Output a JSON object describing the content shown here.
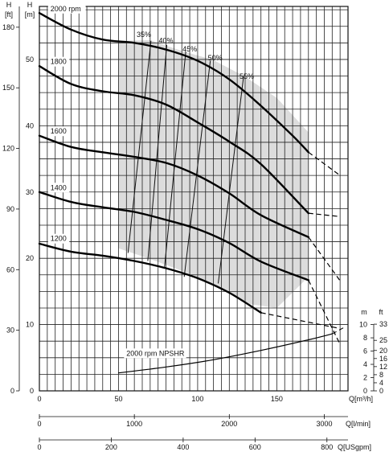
{
  "chart_data": {
    "type": "line",
    "axes": {
      "x_primary": {
        "unit": "Q[m³/h]",
        "ticks": [
          0,
          50,
          100,
          150
        ],
        "range": [
          0,
          195
        ],
        "grid_step": 5
      },
      "x_lmin": {
        "unit": "Q[l/min]",
        "ticks": [
          0,
          1000,
          2000,
          3000
        ]
      },
      "x_usgpm": {
        "unit": "Q[USgpm]",
        "ticks": [
          0,
          200,
          400,
          600,
          800
        ]
      },
      "y_m": {
        "unit": "[m]",
        "title": "H",
        "ticks": [
          0,
          10,
          20,
          30,
          40,
          50
        ],
        "range": [
          0,
          58
        ],
        "grid_step": 2.5
      },
      "y_ft": {
        "unit": "[ft]",
        "title": "H",
        "ticks": [
          0,
          30,
          60,
          90,
          120,
          150,
          180
        ]
      },
      "npshr_m": {
        "title": "m",
        "ticks": [
          0,
          2,
          4,
          6,
          8,
          10
        ]
      },
      "npshr_ft": {
        "title": "ft",
        "ticks": [
          0,
          4,
          8,
          12,
          16,
          20,
          25,
          33
        ]
      }
    },
    "grid": true,
    "series": [
      {
        "name": "2000 rpm",
        "points": [
          [
            0,
            57
          ],
          [
            20,
            54.5
          ],
          [
            40,
            53
          ],
          [
            60,
            52.5
          ],
          [
            80,
            51.5
          ],
          [
            100,
            49.8
          ],
          [
            120,
            47
          ],
          [
            140,
            43
          ],
          [
            160,
            38.5
          ],
          [
            170,
            36
          ]
        ],
        "ext": [
          [
            170,
            36
          ],
          [
            190,
            32.5
          ]
        ]
      },
      {
        "name": "1800",
        "points": [
          [
            0,
            49
          ],
          [
            20,
            46.3
          ],
          [
            40,
            45.2
          ],
          [
            60,
            44.6
          ],
          [
            80,
            43.2
          ],
          [
            100,
            40.5
          ],
          [
            120,
            37.6
          ],
          [
            140,
            34.2
          ],
          [
            170,
            26.8
          ]
        ],
        "ext": [
          [
            170,
            26.8
          ],
          [
            190,
            26.3
          ]
        ]
      },
      {
        "name": "1600",
        "points": [
          [
            0,
            38.5
          ],
          [
            20,
            36.8
          ],
          [
            40,
            36
          ],
          [
            60,
            35.3
          ],
          [
            80,
            34.4
          ],
          [
            100,
            32.5
          ],
          [
            120,
            29.8
          ],
          [
            140,
            26.5
          ],
          [
            170,
            23.2
          ]
        ],
        "ext": [
          [
            170,
            23.2
          ],
          [
            190,
            16.6
          ]
        ]
      },
      {
        "name": "1400",
        "points": [
          [
            0,
            30
          ],
          [
            20,
            28.5
          ],
          [
            40,
            27.7
          ],
          [
            60,
            27
          ],
          [
            80,
            25.8
          ],
          [
            100,
            24.4
          ],
          [
            120,
            22.3
          ],
          [
            140,
            19.5
          ],
          [
            170,
            16.7
          ]
        ],
        "ext": [
          [
            170,
            16.7
          ],
          [
            190,
            7
          ]
        ]
      },
      {
        "name": "1200",
        "points": [
          [
            0,
            22.2
          ],
          [
            20,
            21
          ],
          [
            40,
            20.4
          ],
          [
            60,
            19.6
          ],
          [
            80,
            18.5
          ],
          [
            100,
            17
          ],
          [
            120,
            14.8
          ],
          [
            140,
            11.8
          ]
        ],
        "ext": [
          [
            140,
            11.8
          ],
          [
            188,
            9.5
          ]
        ]
      },
      {
        "name": "2000 rpm NPSHR",
        "points": [
          [
            50,
            2.7
          ],
          [
            80,
            3.6
          ],
          [
            110,
            4.7
          ],
          [
            140,
            6.1
          ],
          [
            170,
            7.7
          ],
          [
            185,
            8.6
          ]
        ],
        "ext": [
          [
            185,
            8.6
          ],
          [
            192,
            9.5
          ]
        ]
      }
    ],
    "efficiency_labels": [
      {
        "label": "35%",
        "at": [
          66,
          53.4
        ]
      },
      {
        "label": "40%",
        "at": [
          80,
          52.5
        ]
      },
      {
        "label": "45%",
        "at": [
          95,
          51.2
        ]
      },
      {
        "label": "50%",
        "at": [
          111,
          49.9
        ]
      },
      {
        "label": "55%",
        "at": [
          131,
          47.1
        ]
      }
    ],
    "efficiency_lines": [
      [
        [
          70.5,
          52.8
        ],
        [
          56,
          20.8
        ]
      ],
      [
        [
          80.5,
          52.2
        ],
        [
          68.5,
          19.6
        ]
      ],
      [
        [
          92.5,
          51.2
        ],
        [
          79,
          18.5
        ]
      ],
      [
        [
          108,
          49.8
        ],
        [
          91.5,
          17.2
        ]
      ],
      [
        [
          129,
          47.4
        ],
        [
          113,
          16.2
        ]
      ]
    ],
    "operating_region": [
      [
        50,
        52.8
      ],
      [
        70,
        52.9
      ],
      [
        90,
        51.3
      ],
      [
        110,
        49.9
      ],
      [
        130,
        47.4
      ],
      [
        150,
        44.2
      ],
      [
        170,
        39
      ],
      [
        170,
        17.2
      ],
      [
        150,
        12.5
      ],
      [
        130,
        13.2
      ],
      [
        110,
        16.2
      ],
      [
        90,
        18.1
      ],
      [
        70,
        19.9
      ],
      [
        50,
        21.5
      ]
    ],
    "curve_labels": [
      {
        "text": "2000 rpm",
        "at": [
          7,
          57.3
        ]
      },
      {
        "text": "1800",
        "at": [
          7,
          49.3
        ]
      },
      {
        "text": "1600",
        "at": [
          7,
          38.8
        ]
      },
      {
        "text": "1400",
        "at": [
          7,
          30.3
        ]
      },
      {
        "text": "1200",
        "at": [
          7,
          22.6
        ]
      },
      {
        "text": "2000 rpm NPSHR",
        "at": [
          55,
          5.3
        ]
      }
    ]
  }
}
